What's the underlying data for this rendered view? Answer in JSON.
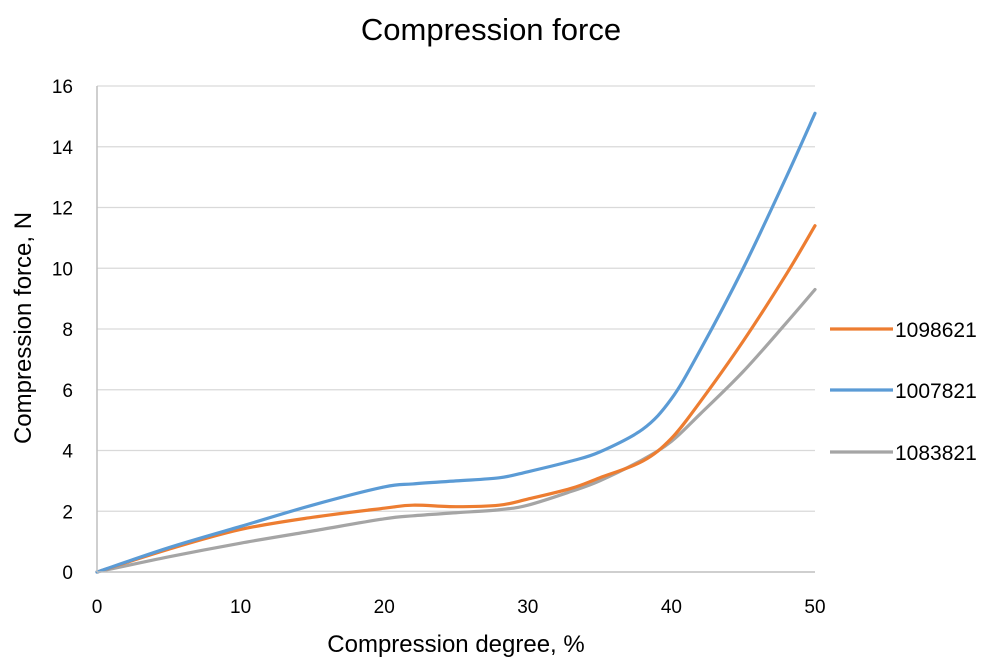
{
  "chart_data": {
    "type": "line",
    "title": "Compression force",
    "xlabel": "Compression degree, %",
    "ylabel": "Compression force, N",
    "xlim": [
      0,
      50
    ],
    "ylim": [
      0,
      16
    ],
    "x_ticks": [
      0,
      10,
      20,
      30,
      40,
      50
    ],
    "y_ticks": [
      0,
      2,
      4,
      6,
      8,
      10,
      12,
      14,
      16
    ],
    "grid": "horizontal",
    "legend_position": "right",
    "x": [
      0,
      5,
      10,
      15,
      20,
      22,
      25,
      28,
      30,
      33,
      35,
      38,
      40,
      42,
      45,
      48,
      50
    ],
    "series": [
      {
        "name": "1098621",
        "color": "#ED7D31",
        "values": [
          0,
          0.75,
          1.4,
          1.8,
          2.1,
          2.2,
          2.15,
          2.2,
          2.4,
          2.75,
          3.1,
          3.65,
          4.4,
          5.6,
          7.6,
          9.8,
          11.4
        ]
      },
      {
        "name": "1007821",
        "color": "#5B9BD5",
        "values": [
          0,
          0.8,
          1.5,
          2.2,
          2.8,
          2.9,
          3.0,
          3.1,
          3.3,
          3.65,
          3.95,
          4.7,
          5.7,
          7.3,
          10.0,
          13.0,
          15.1
        ]
      },
      {
        "name": "1083821",
        "color": "#A5A5A5",
        "values": [
          0,
          0.5,
          0.95,
          1.35,
          1.75,
          1.85,
          1.95,
          2.05,
          2.2,
          2.65,
          3.0,
          3.7,
          4.3,
          5.2,
          6.6,
          8.2,
          9.3
        ]
      }
    ]
  }
}
